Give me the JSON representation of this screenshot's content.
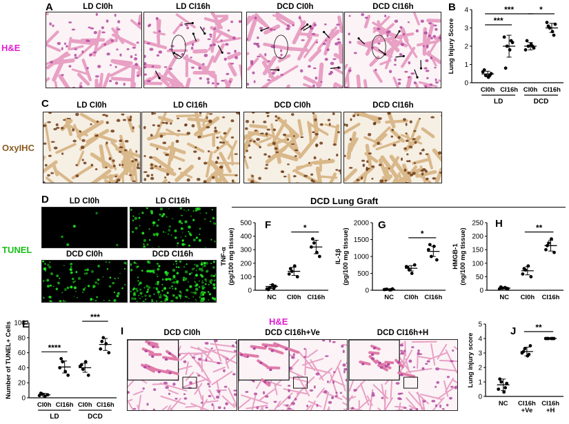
{
  "figure": {
    "panel_letters": {
      "A": "A",
      "B": "B",
      "C": "C",
      "D": "D",
      "E": "E",
      "F": "F",
      "G": "G",
      "H": "H",
      "I": "I",
      "J": "J"
    },
    "row_labels": {
      "he": "H&E",
      "oxyl": "OxyIHC",
      "tunel": "TUNEL",
      "he_i": "H&E"
    },
    "he_titles": [
      "LD CI0h",
      "LD CI16h",
      "DCD CI0h",
      "DCD CI16h"
    ],
    "oxyl_titles": [
      "LD CI0h",
      "LD CI16h",
      "DCD CI0h",
      "DCD CI16h"
    ],
    "tunel_titles": [
      "LD CI0h",
      "LD CI16h",
      "DCD CI0h",
      "DCD CI16h"
    ],
    "i_titles": [
      "DCD CI0h",
      "DCD CI16h+Ve",
      "DCD CI16h+H"
    ],
    "dcd_graft_label": "DCD Lung Graft",
    "colors": {
      "he_pink": "#e8a0c4",
      "he_purple": "#b24aa0",
      "ihc_tan": "#d9b88a",
      "ihc_brown": "#6e3b17",
      "tunel_green": "#22e622",
      "label_magenta": "#e01cd0",
      "label_brown": "#8a5a1e",
      "label_green": "#18c018"
    }
  },
  "chart_data": [
    {
      "id": "B",
      "type": "scatter",
      "ylabel": "Lung Injury Score",
      "ylim": [
        0,
        4
      ],
      "yticks": [
        "0",
        "1",
        "2",
        "3",
        "4"
      ],
      "categories": [
        "CI0h",
        "CI16h",
        "CI0h",
        "CI16h"
      ],
      "groups": [
        "LD",
        "DCD"
      ],
      "points": [
        [
          0.6,
          0.4,
          0.3,
          0.5,
          0.7,
          0.4
        ],
        [
          2.5,
          2.0,
          1.8,
          2.2,
          0.8,
          2.3
        ],
        [
          1.8,
          2.0,
          2.1,
          1.9,
          2.3,
          2.0
        ],
        [
          3.3,
          3.0,
          2.8,
          3.2,
          3.1,
          2.6
        ]
      ],
      "means": [
        0.48,
        2.0,
        2.0,
        3.0
      ],
      "sds": [
        0.15,
        0.6,
        0.2,
        0.25
      ],
      "sig": [
        {
          "from": 0,
          "to": 1,
          "label": "***"
        },
        {
          "from": 0,
          "to": 2,
          "label": "***"
        },
        {
          "from": 2,
          "to": 3,
          "label": "*"
        }
      ]
    },
    {
      "id": "E",
      "type": "scatter",
      "ylabel": "Number of TUNEL+ Cells",
      "ylim": [
        0,
        100
      ],
      "yticks": [
        "0",
        "20",
        "40",
        "60",
        "80",
        "100"
      ],
      "categories": [
        "CI0h",
        "CI16h",
        "CI0h",
        "CI16h"
      ],
      "groups": [
        "LD",
        "DCD"
      ],
      "points": [
        [
          3,
          5,
          2,
          4,
          6
        ],
        [
          40,
          48,
          35,
          30,
          52
        ],
        [
          42,
          38,
          48,
          30,
          44
        ],
        [
          65,
          80,
          72,
          60,
          75
        ]
      ],
      "means": [
        4,
        41,
        40,
        71
      ],
      "sds": [
        2,
        8,
        6,
        8
      ],
      "sig": [
        {
          "from": 0,
          "to": 1,
          "label": "****"
        },
        {
          "from": 2,
          "to": 3,
          "label": "***"
        }
      ]
    },
    {
      "id": "F",
      "type": "scatter",
      "ylabel": [
        "TNF-α",
        "(pg/100 mg tissue)"
      ],
      "ylim": [
        0,
        500
      ],
      "yticks": [
        "0",
        "100",
        "200",
        "300",
        "400",
        "500"
      ],
      "categories": [
        "NC",
        "CI0h",
        "CI16h"
      ],
      "points": [
        [
          10,
          20,
          40,
          30,
          5,
          15
        ],
        [
          120,
          140,
          180,
          100,
          160
        ],
        [
          320,
          350,
          280,
          250,
          380
        ]
      ],
      "means": [
        28,
        140,
        320
      ],
      "sds": [
        15,
        30,
        50
      ],
      "sig": [
        {
          "from": 1,
          "to": 2,
          "label": "*"
        }
      ]
    },
    {
      "id": "G",
      "type": "scatter",
      "ylabel": [
        "IL-1β",
        "(pg/100 mg tissue)"
      ],
      "ylim": [
        0,
        2000
      ],
      "yticks": [
        "0",
        "500",
        "1000",
        "1500",
        "2000"
      ],
      "categories": [
        "NC",
        "CI0h",
        "CI16h"
      ],
      "points": [
        [
          20,
          30,
          10,
          40,
          25,
          15
        ],
        [
          700,
          600,
          500,
          750,
          680
        ],
        [
          1200,
          1000,
          1300,
          900,
          1350
        ]
      ],
      "means": [
        25,
        650,
        1150
      ],
      "sds": [
        10,
        80,
        150
      ],
      "sig": [
        {
          "from": 1,
          "to": 2,
          "label": "*"
        }
      ]
    },
    {
      "id": "H",
      "type": "scatter",
      "ylabel": [
        "HMGB-1",
        "(ng/100 mg tissue)"
      ],
      "ylim": [
        0,
        250
      ],
      "yticks": [
        "0",
        "50",
        "100",
        "150",
        "200",
        "250"
      ],
      "categories": [
        "NC",
        "CI0h",
        "CI16h"
      ],
      "points": [
        [
          5,
          8,
          10,
          6,
          12,
          7
        ],
        [
          60,
          75,
          90,
          50,
          80
        ],
        [
          150,
          175,
          190,
          140,
          165
        ]
      ],
      "means": [
        8,
        72,
        165
      ],
      "sds": [
        3,
        15,
        20
      ],
      "sig": [
        {
          "from": 1,
          "to": 2,
          "label": "**"
        }
      ]
    },
    {
      "id": "J",
      "type": "scatter",
      "ylabel": "Lung injury score",
      "ylim": [
        0,
        5
      ],
      "yticks": [
        "0",
        "1",
        "2",
        "3",
        "4",
        "5"
      ],
      "categories": [
        "NC",
        "CI16h\n+Ve",
        "CI16h\n+H"
      ],
      "points": [
        [
          0.5,
          1.0,
          0.3,
          0.9,
          1.2,
          0.6
        ],
        [
          3.0,
          3.3,
          2.8,
          3.5,
          3.1,
          2.9
        ],
        [
          4.0,
          4.0,
          4.0,
          4.0,
          4.0,
          4.0
        ]
      ],
      "means": [
        0.8,
        3.1,
        4.0
      ],
      "sds": [
        0.4,
        0.3,
        0.0
      ],
      "sig": [
        {
          "from": 1,
          "to": 2,
          "label": "**"
        }
      ]
    }
  ]
}
